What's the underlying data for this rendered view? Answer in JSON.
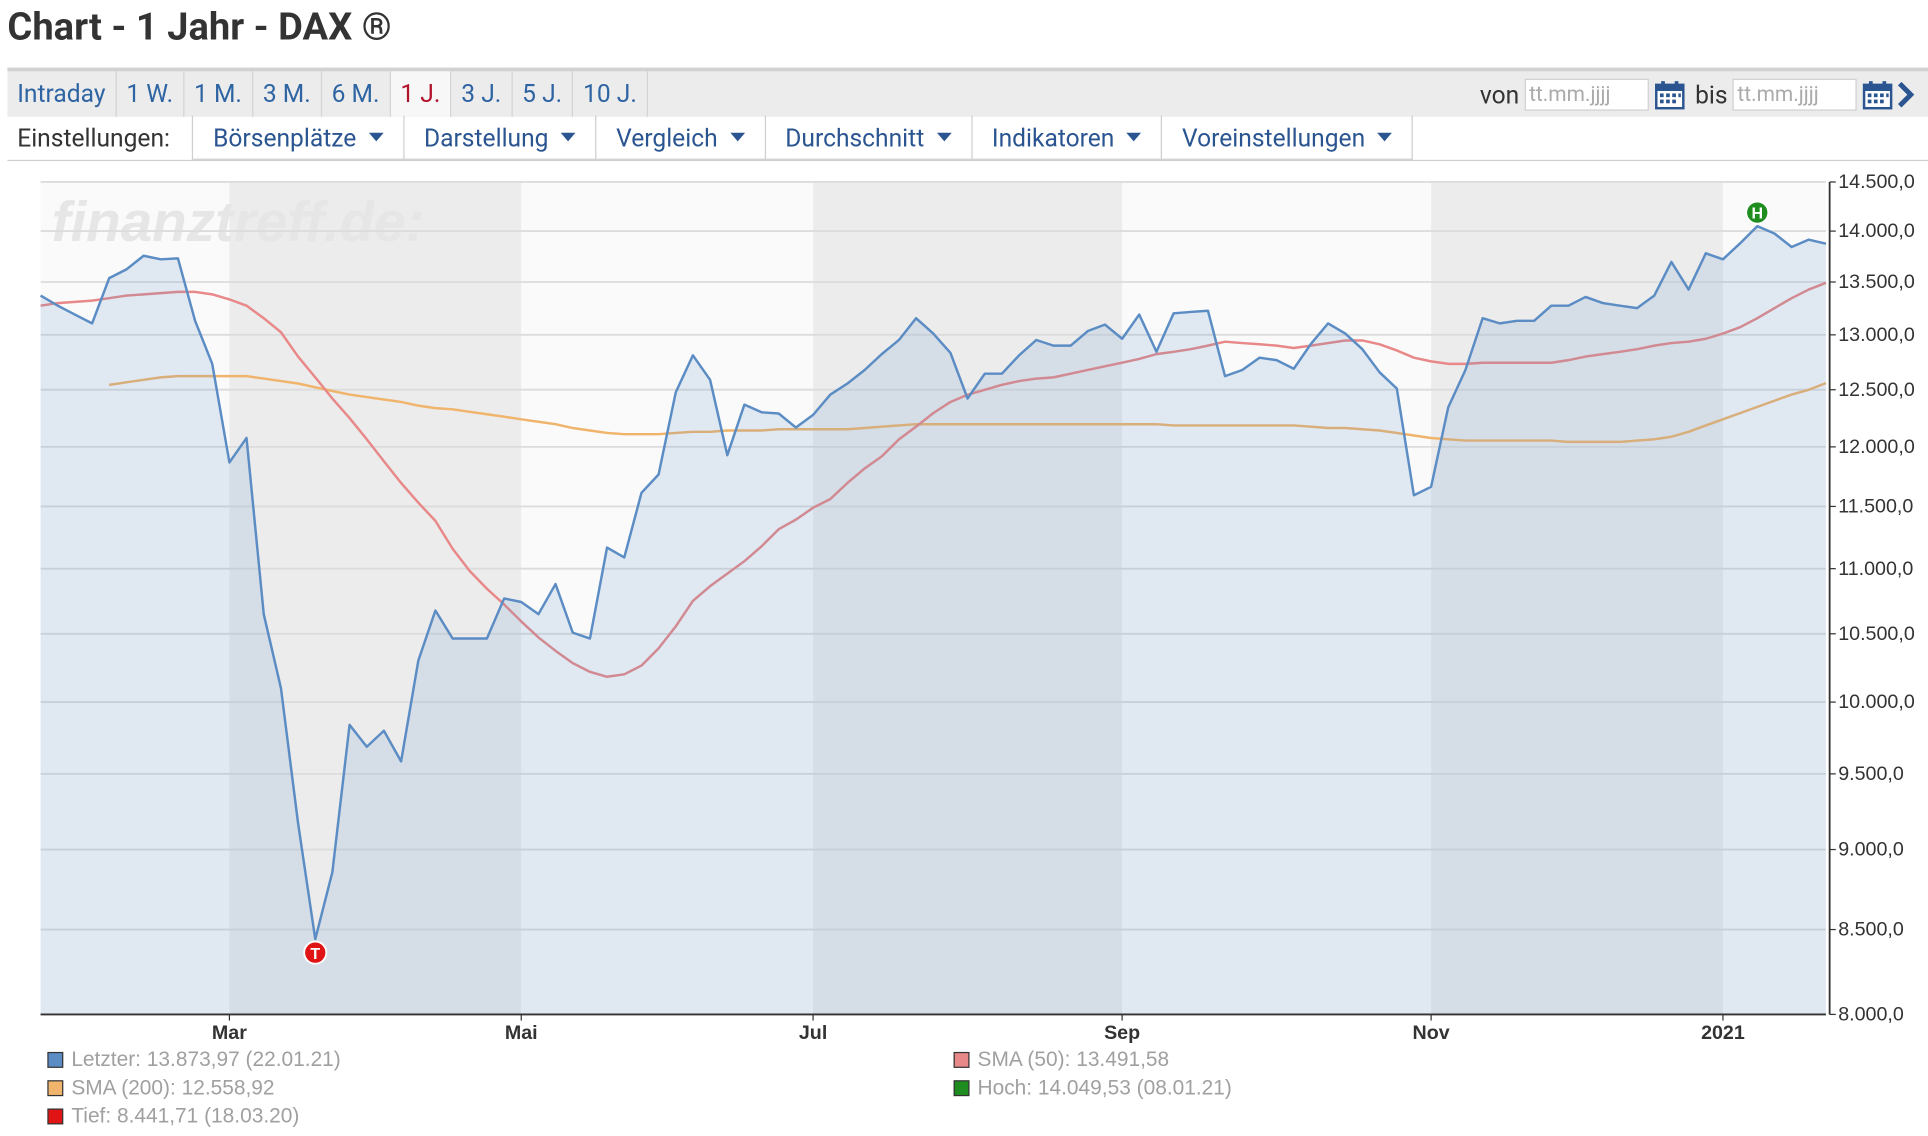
{
  "header": {
    "title": "Chart - 1 Jahr - DAX ®"
  },
  "tabs": {
    "items": [
      "Intraday",
      "1 W.",
      "1 M.",
      "3 M.",
      "6 M.",
      "1 J.",
      "3 J.",
      "5 J.",
      "10 J."
    ],
    "active": 5
  },
  "date_range": {
    "from_label": "von",
    "to_label": "bis",
    "placeholder": "tt.mm.jjjj"
  },
  "toolbar": {
    "label": "Einstellungen:",
    "menus": [
      "Börsenplätze",
      "Darstellung",
      "Vergleich",
      "Durchschnitt",
      "Indikatoren",
      "Voreinstellungen"
    ]
  },
  "chart_data": {
    "type": "line",
    "watermark": "finanztreff.de:",
    "log_scale": true,
    "grid": true,
    "ylim": [
      8000,
      14500
    ],
    "yticks": [
      {
        "value": 8000,
        "label": "8.000,0"
      },
      {
        "value": 8500,
        "label": "8.500,0"
      },
      {
        "value": 9000,
        "label": "9.000,0"
      },
      {
        "value": 9500,
        "label": "9.500,0"
      },
      {
        "value": 10000,
        "label": "10.000,0"
      },
      {
        "value": 10500,
        "label": "10.500,0"
      },
      {
        "value": 11000,
        "label": "11.000,0"
      },
      {
        "value": 11500,
        "label": "11.500,0"
      },
      {
        "value": 12000,
        "label": "12.000,0"
      },
      {
        "value": 12500,
        "label": "12.500,0"
      },
      {
        "value": 13000,
        "label": "13.000,0"
      },
      {
        "value": 13500,
        "label": "13.500,0"
      },
      {
        "value": 14000,
        "label": "14.000,0"
      },
      {
        "value": 14500,
        "label": "14.500,0"
      }
    ],
    "categories": [
      null,
      null,
      null,
      null,
      null,
      null,
      null,
      null,
      null,
      null,
      null,
      "Mar",
      null,
      null,
      null,
      null,
      null,
      null,
      null,
      null,
      null,
      null,
      null,
      null,
      null,
      null,
      null,
      null,
      "Mai",
      null,
      null,
      null,
      null,
      null,
      null,
      null,
      null,
      null,
      null,
      null,
      null,
      null,
      null,
      null,
      null,
      "Jul",
      null,
      null,
      null,
      null,
      null,
      null,
      null,
      null,
      null,
      null,
      null,
      null,
      null,
      null,
      null,
      null,
      null,
      "Sep",
      null,
      null,
      null,
      null,
      null,
      null,
      null,
      null,
      null,
      null,
      null,
      null,
      null,
      null,
      null,
      null,
      null,
      "Nov",
      null,
      null,
      null,
      null,
      null,
      null,
      null,
      null,
      null,
      null,
      null,
      null,
      null,
      null,
      null,
      null,
      "2021",
      null,
      null,
      null,
      null,
      null,
      null
    ],
    "series": [
      {
        "name": "Letzter: 13.873,97 (22.01.21)",
        "color": "#5b8cc4",
        "area": true,
        "values": [
          13370,
          13274,
          13190,
          13107,
          13537,
          13622,
          13756,
          13720,
          13730,
          13130,
          12733,
          11867,
          12076,
          10648,
          10100,
          9172,
          8442,
          8856,
          9839,
          9686,
          9797,
          9585,
          10300,
          10676,
          10464,
          10464,
          10464,
          10768,
          10741,
          10648,
          10880,
          10509,
          10464,
          11167,
          11088,
          11612,
          11765,
          12478,
          12811,
          12589,
          11929,
          12367,
          12300,
          12289,
          12167,
          12278,
          12456,
          12556,
          12678,
          12822,
          12952,
          13155,
          13012,
          12833,
          12422,
          12644,
          12644,
          12811,
          12952,
          12900,
          12900,
          13036,
          13095,
          12964,
          13190,
          12844,
          13202,
          13214,
          13226,
          12622,
          12678,
          12789,
          12767,
          12689,
          12917,
          13107,
          13012,
          12867,
          12656,
          12511,
          11592,
          11663,
          12344,
          12678,
          13155,
          13107,
          13131,
          13131,
          13274,
          13274,
          13357,
          13298,
          13274,
          13250,
          13369,
          13695,
          13427,
          13780,
          13720,
          13878,
          14050,
          13976,
          13841,
          13915,
          13874
        ]
      },
      {
        "name": "SMA (50): 13.491,58",
        "color": "#e88888",
        "values": [
          13274,
          13298,
          13310,
          13321,
          13345,
          13369,
          13381,
          13393,
          13405,
          13405,
          13381,
          13333,
          13274,
          13155,
          13024,
          12800,
          12611,
          12422,
          12250,
          12065,
          11878,
          11694,
          11531,
          11382,
          11157,
          10981,
          10843,
          10722,
          10593,
          10473,
          10373,
          10282,
          10218,
          10182,
          10200,
          10264,
          10391,
          10556,
          10750,
          10863,
          10961,
          11059,
          11177,
          11314,
          11392,
          11490,
          11561,
          11694,
          11816,
          11918,
          12065,
          12174,
          12293,
          12391,
          12456,
          12500,
          12544,
          12578,
          12600,
          12611,
          12644,
          12678,
          12711,
          12744,
          12778,
          12822,
          12844,
          12867,
          12900,
          12936,
          12924,
          12912,
          12900,
          12878,
          12900,
          12924,
          12948,
          12948,
          12912,
          12856,
          12789,
          12756,
          12733,
          12733,
          12744,
          12744,
          12744,
          12744,
          12744,
          12767,
          12800,
          12822,
          12844,
          12867,
          12900,
          12924,
          12936,
          12964,
          13012,
          13071,
          13155,
          13250,
          13345,
          13427,
          13492
        ]
      },
      {
        "name": "SMA (200): 12.558,92",
        "color": "#f0b46c",
        "values": [
          null,
          null,
          null,
          null,
          12544,
          12567,
          12589,
          12611,
          12622,
          12622,
          12622,
          12622,
          12622,
          12600,
          12578,
          12556,
          12522,
          12489,
          12457,
          12435,
          12413,
          12391,
          12359,
          12337,
          12326,
          12304,
          12283,
          12261,
          12239,
          12217,
          12196,
          12163,
          12141,
          12120,
          12109,
          12109,
          12109,
          12120,
          12130,
          12130,
          12141,
          12141,
          12141,
          12152,
          12152,
          12152,
          12152,
          12152,
          12163,
          12174,
          12185,
          12196,
          12196,
          12196,
          12196,
          12196,
          12196,
          12196,
          12196,
          12196,
          12196,
          12196,
          12196,
          12196,
          12196,
          12196,
          12185,
          12185,
          12185,
          12185,
          12185,
          12185,
          12185,
          12185,
          12174,
          12163,
          12163,
          12152,
          12141,
          12120,
          12098,
          12076,
          12065,
          12054,
          12054,
          12054,
          12054,
          12054,
          12054,
          12043,
          12043,
          12043,
          12043,
          12054,
          12065,
          12087,
          12130,
          12185,
          12239,
          12293,
          12348,
          12402,
          12457,
          12500,
          12559
        ]
      }
    ],
    "annotations": [
      {
        "label": "Hoch: 14.049,53 (08.01.21)",
        "marker": "H",
        "color": "#1e8c1e",
        "kind": "max"
      },
      {
        "label": "Tief: 8.441,71 (18.03.20)",
        "marker": "T",
        "color": "#e01414",
        "kind": "min"
      }
    ]
  }
}
